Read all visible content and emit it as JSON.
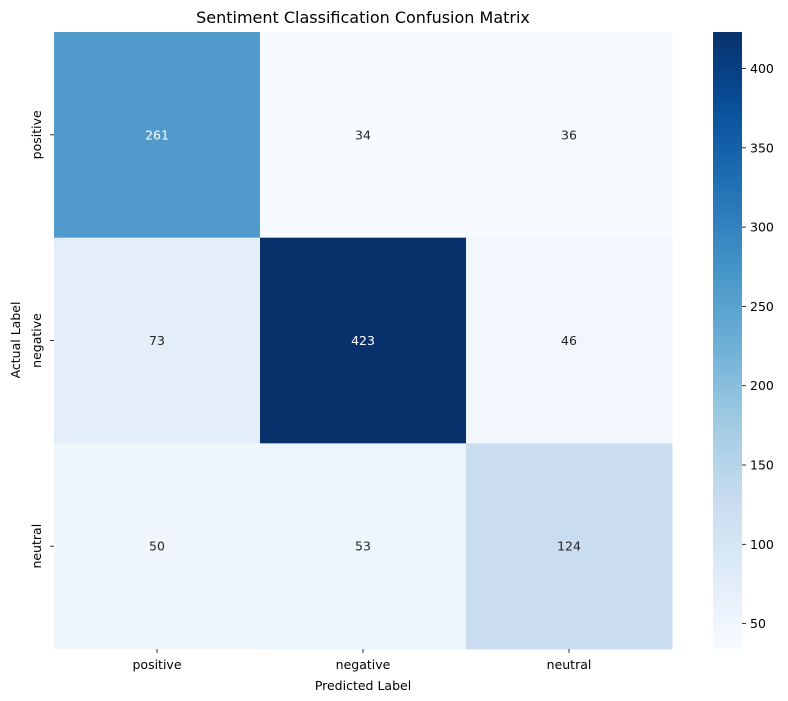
{
  "chart_data": {
    "type": "heatmap",
    "title": "Sentiment Classification Confusion Matrix",
    "xlabel": "Predicted Label",
    "ylabel": "Actual Label",
    "x_categories": [
      "positive",
      "negative",
      "neutral"
    ],
    "y_categories": [
      "positive",
      "negative",
      "neutral"
    ],
    "values": [
      [
        261,
        34,
        36
      ],
      [
        73,
        423,
        46
      ],
      [
        50,
        53,
        124
      ]
    ],
    "colormap": "Blues",
    "colorbar": {
      "range": [
        34,
        423
      ],
      "ticks": [
        50,
        100,
        150,
        200,
        250,
        300,
        350,
        400
      ]
    },
    "grid": false
  }
}
